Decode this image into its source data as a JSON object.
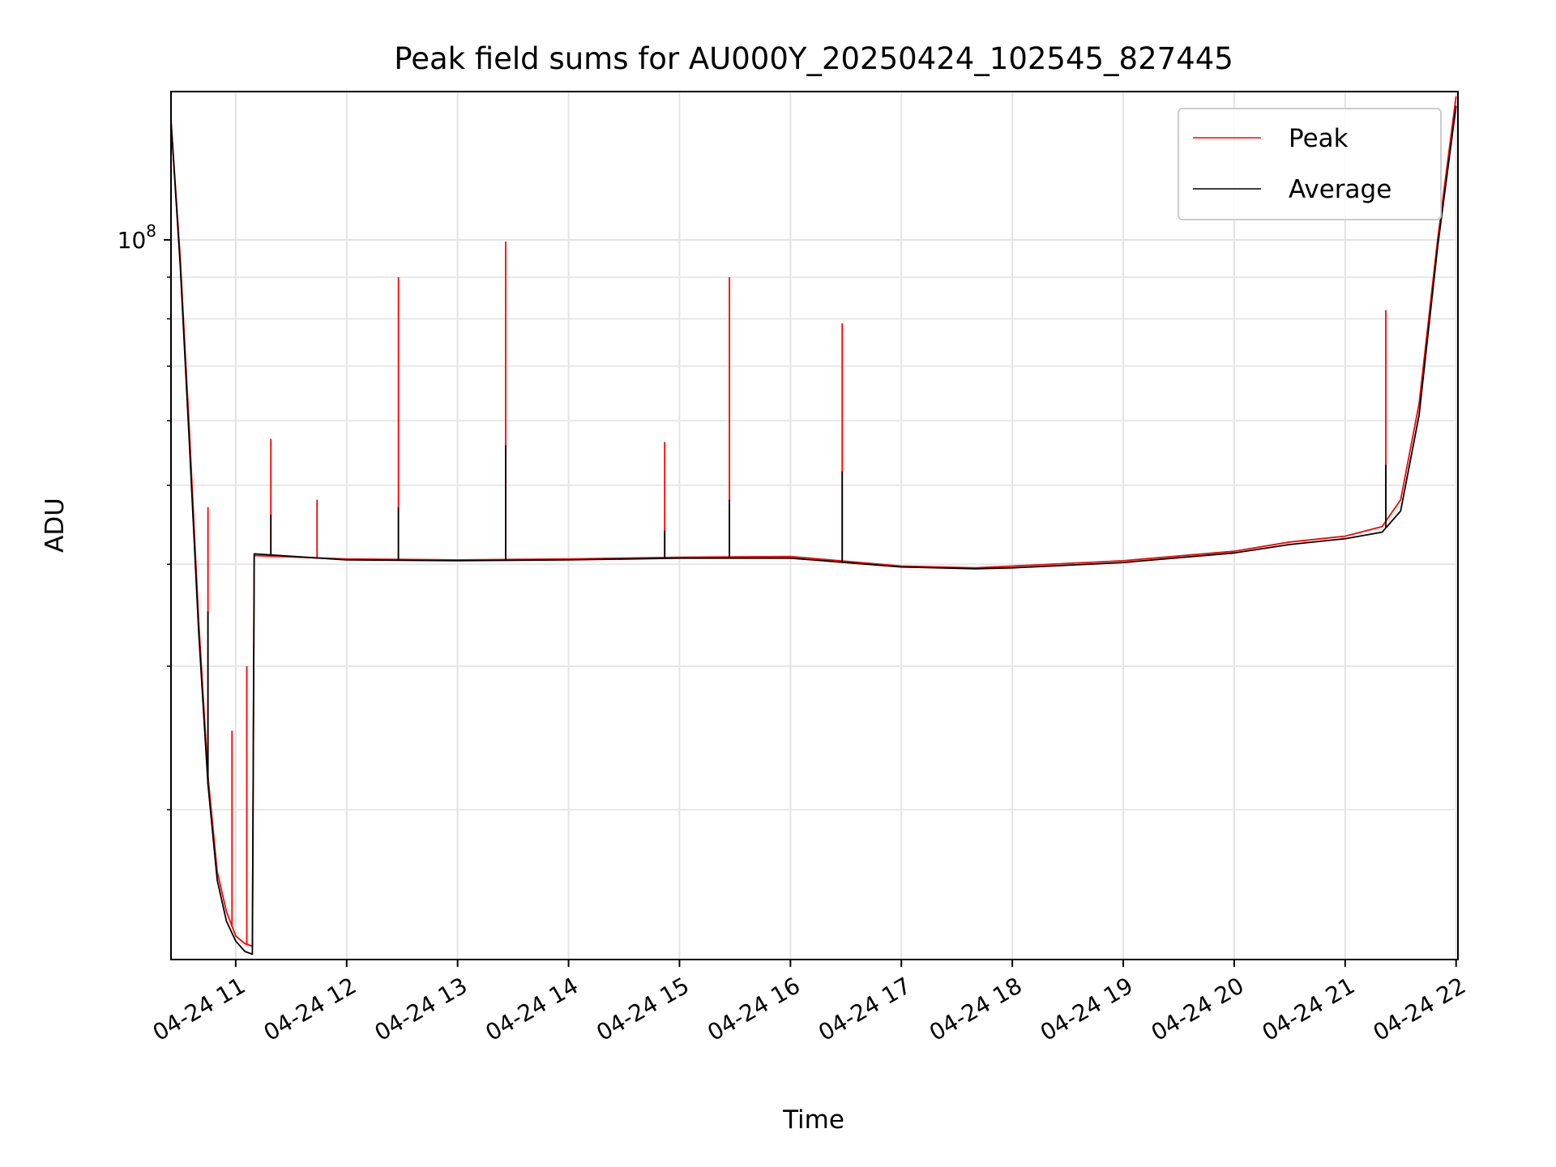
{
  "chart_data": {
    "type": "line",
    "title": "Peak field sums for AU000Y_20250424_102545_827445",
    "xlabel": "Time",
    "ylabel": "ADU",
    "x_scale": "time",
    "y_scale": "log",
    "xlim": [
      "2025-04-24 10:25",
      "2025-04-24 22:01"
    ],
    "ylim": [
      13100000,
      152000000
    ],
    "grid": true,
    "grid_minor_y": true,
    "legend_placement": "top-right",
    "x_ticks": [
      {
        "label": "04-24 11",
        "value": "2025-04-24 11:00"
      },
      {
        "label": "04-24 12",
        "value": "2025-04-24 12:00"
      },
      {
        "label": "04-24 13",
        "value": "2025-04-24 13:00"
      },
      {
        "label": "04-24 14",
        "value": "2025-04-24 14:00"
      },
      {
        "label": "04-24 15",
        "value": "2025-04-24 15:00"
      },
      {
        "label": "04-24 16",
        "value": "2025-04-24 16:00"
      },
      {
        "label": "04-24 17",
        "value": "2025-04-24 17:00"
      },
      {
        "label": "04-24 18",
        "value": "2025-04-24 18:00"
      },
      {
        "label": "04-24 19",
        "value": "2025-04-24 19:00"
      },
      {
        "label": "04-24 20",
        "value": "2025-04-24 20:00"
      },
      {
        "label": "04-24 21",
        "value": "2025-04-24 21:00"
      },
      {
        "label": "04-24 22",
        "value": "2025-04-24 22:00"
      }
    ],
    "y_ticks_major": [
      {
        "label_base": "10",
        "label_exp": "8",
        "value": 100000000
      }
    ],
    "y_ticks_minor": [
      20000000,
      30000000,
      40000000,
      50000000,
      60000000,
      70000000,
      80000000,
      90000000
    ],
    "series": [
      {
        "name": "Peak",
        "color": "#ff0000",
        "points": [
          [
            "2025-04-24 10:25",
            140000000
          ],
          [
            "2025-04-24 10:30",
            95000000
          ],
          [
            "2025-04-24 10:35",
            58000000
          ],
          [
            "2025-04-24 10:40",
            34000000
          ],
          [
            "2025-04-24 10:45",
            22000000
          ],
          [
            "2025-04-24 10:50",
            16800000
          ],
          [
            "2025-04-24 10:55",
            15000000
          ],
          [
            "2025-04-24 11:00",
            14000000
          ],
          [
            "2025-04-24 11:05",
            13700000
          ],
          [
            "2025-04-24 11:09",
            13600000
          ],
          [
            "2025-04-24 11:10",
            41000000
          ],
          [
            "2025-04-24 12:00",
            40600000
          ],
          [
            "2025-04-24 13:00",
            40500000
          ],
          [
            "2025-04-24 14:00",
            40600000
          ],
          [
            "2025-04-24 15:00",
            40800000
          ],
          [
            "2025-04-24 16:00",
            40900000
          ],
          [
            "2025-04-24 17:00",
            39800000
          ],
          [
            "2025-04-24 17:40",
            39600000
          ],
          [
            "2025-04-24 18:00",
            39800000
          ],
          [
            "2025-04-24 19:00",
            40400000
          ],
          [
            "2025-04-24 20:00",
            41500000
          ],
          [
            "2025-04-24 20:30",
            42600000
          ],
          [
            "2025-04-24 21:00",
            43300000
          ],
          [
            "2025-04-24 21:20",
            44500000
          ],
          [
            "2025-04-24 21:30",
            48000000
          ],
          [
            "2025-04-24 21:40",
            63000000
          ],
          [
            "2025-04-24 21:50",
            100000000
          ],
          [
            "2025-04-24 22:00",
            150000000
          ]
        ],
        "spikes": [
          [
            "2025-04-24 10:45",
            47000000
          ],
          [
            "2025-04-24 10:58",
            25000000
          ],
          [
            "2025-04-24 11:06",
            30000000
          ],
          [
            "2025-04-24 11:19",
            57000000
          ],
          [
            "2025-04-24 11:44",
            48000000
          ],
          [
            "2025-04-24 12:28",
            90000000
          ],
          [
            "2025-04-24 13:26",
            99500000
          ],
          [
            "2025-04-24 14:52",
            56500000
          ],
          [
            "2025-04-24 15:27",
            90000000
          ],
          [
            "2025-04-24 16:28",
            79000000
          ],
          [
            "2025-04-24 21:22",
            82000000
          ]
        ]
      },
      {
        "name": "Average",
        "color": "#000000",
        "points": [
          [
            "2025-04-24 10:25",
            140000000
          ],
          [
            "2025-04-24 10:30",
            93000000
          ],
          [
            "2025-04-24 10:35",
            56000000
          ],
          [
            "2025-04-24 10:40",
            33000000
          ],
          [
            "2025-04-24 10:45",
            21500000
          ],
          [
            "2025-04-24 10:50",
            16400000
          ],
          [
            "2025-04-24 10:55",
            14600000
          ],
          [
            "2025-04-24 11:00",
            13800000
          ],
          [
            "2025-04-24 11:05",
            13400000
          ],
          [
            "2025-04-24 11:09",
            13300000
          ],
          [
            "2025-04-24 11:10",
            41200000
          ],
          [
            "2025-04-24 12:00",
            40500000
          ],
          [
            "2025-04-24 13:00",
            40400000
          ],
          [
            "2025-04-24 14:00",
            40500000
          ],
          [
            "2025-04-24 15:00",
            40700000
          ],
          [
            "2025-04-24 16:00",
            40700000
          ],
          [
            "2025-04-24 17:00",
            39700000
          ],
          [
            "2025-04-24 17:40",
            39500000
          ],
          [
            "2025-04-24 18:00",
            39600000
          ],
          [
            "2025-04-24 19:00",
            40200000
          ],
          [
            "2025-04-24 20:00",
            41300000
          ],
          [
            "2025-04-24 20:30",
            42300000
          ],
          [
            "2025-04-24 21:00",
            43000000
          ],
          [
            "2025-04-24 21:20",
            43800000
          ],
          [
            "2025-04-24 21:30",
            46500000
          ],
          [
            "2025-04-24 21:40",
            61000000
          ],
          [
            "2025-04-24 21:50",
            98000000
          ],
          [
            "2025-04-24 22:00",
            146000000
          ]
        ],
        "spikes": [
          [
            "2025-04-24 10:45",
            35000000
          ],
          [
            "2025-04-24 11:19",
            46000000
          ],
          [
            "2025-04-24 12:28",
            47000000
          ],
          [
            "2025-04-24 13:26",
            56000000
          ],
          [
            "2025-04-24 14:52",
            44000000
          ],
          [
            "2025-04-24 15:27",
            48000000
          ],
          [
            "2025-04-24 16:28",
            52000000
          ],
          [
            "2025-04-24 21:22",
            53000000
          ]
        ]
      }
    ]
  }
}
